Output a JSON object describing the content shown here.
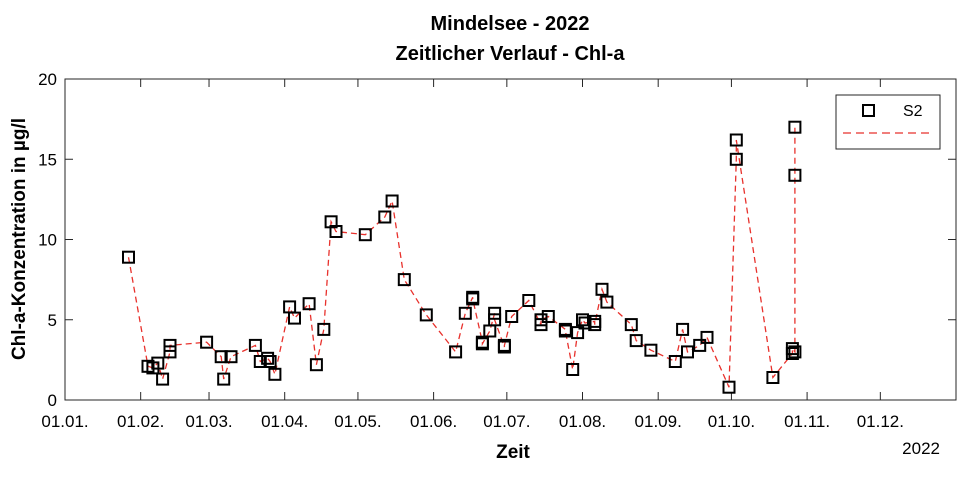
{
  "chart_data": {
    "type": "scatter",
    "title": "Mindelsee - 2022",
    "subtitle": "Zeitlicher Verlauf - Chl-a",
    "xlabel": "Zeit",
    "ylabel": "Chl-a-Konzentration in µg/l",
    "year_label": "2022",
    "xlim": [
      "2022-01-01",
      "2023-01-01"
    ],
    "ylim": [
      0,
      20
    ],
    "yticks": [
      0,
      5,
      10,
      15,
      20
    ],
    "xticks": [
      {
        "date": "2022-01-01",
        "label": "01.01."
      },
      {
        "date": "2022-02-01",
        "label": "01.02."
      },
      {
        "date": "2022-03-01",
        "label": "01.03."
      },
      {
        "date": "2022-04-01",
        "label": "01.04."
      },
      {
        "date": "2022-05-01",
        "label": "01.05."
      },
      {
        "date": "2022-06-01",
        "label": "01.06."
      },
      {
        "date": "2022-07-01",
        "label": "01.07."
      },
      {
        "date": "2022-08-01",
        "label": "01.08."
      },
      {
        "date": "2022-09-01",
        "label": "01.09."
      },
      {
        "date": "2022-10-01",
        "label": "01.10."
      },
      {
        "date": "2022-11-01",
        "label": "01.11."
      },
      {
        "date": "2022-12-01",
        "label": "01.12."
      }
    ],
    "grid": false,
    "legend": "top-right",
    "series": [
      {
        "name": "S2",
        "marker": "square",
        "marker_color": "#000000",
        "line_color": "#e8312c",
        "line_style": "dashed",
        "x": [
          "2022-01-27",
          "2022-02-04",
          "2022-02-06",
          "2022-02-08",
          "2022-02-10",
          "2022-02-13",
          "2022-02-13",
          "2022-02-28",
          "2022-03-06",
          "2022-03-07",
          "2022-03-10",
          "2022-03-20",
          "2022-03-22",
          "2022-03-25",
          "2022-03-26",
          "2022-03-28",
          "2022-04-03",
          "2022-04-05",
          "2022-04-11",
          "2022-04-14",
          "2022-04-17",
          "2022-04-20",
          "2022-04-22",
          "2022-05-04",
          "2022-05-12",
          "2022-05-15",
          "2022-05-20",
          "2022-05-29",
          "2022-06-10",
          "2022-06-14",
          "2022-06-17",
          "2022-06-17",
          "2022-06-21",
          "2022-06-21",
          "2022-06-24",
          "2022-06-26",
          "2022-06-26",
          "2022-06-30",
          "2022-06-30",
          "2022-07-03",
          "2022-07-10",
          "2022-07-15",
          "2022-07-15",
          "2022-07-18",
          "2022-07-25",
          "2022-07-25",
          "2022-07-28",
          "2022-07-30",
          "2022-08-01",
          "2022-08-02",
          "2022-08-06",
          "2022-08-06",
          "2022-08-09",
          "2022-08-11",
          "2022-08-21",
          "2022-08-23",
          "2022-08-29",
          "2022-09-08",
          "2022-09-11",
          "2022-09-13",
          "2022-09-18",
          "2022-09-21",
          "2022-09-30",
          "2022-10-03",
          "2022-10-03",
          "2022-10-18",
          "2022-10-26",
          "2022-10-26",
          "2022-10-27",
          "2022-10-27",
          "2022-10-27"
        ],
        "y": [
          8.9,
          2.1,
          2.0,
          2.3,
          1.3,
          3.0,
          3.4,
          3.6,
          2.7,
          1.3,
          2.7,
          3.4,
          2.4,
          2.6,
          2.4,
          1.6,
          5.8,
          5.1,
          6.0,
          2.2,
          4.4,
          11.1,
          10.5,
          10.3,
          11.4,
          12.4,
          7.5,
          5.3,
          3.0,
          5.4,
          6.4,
          6.3,
          3.6,
          3.5,
          4.3,
          5.4,
          5.0,
          3.3,
          3.4,
          5.2,
          6.2,
          4.7,
          5.0,
          5.2,
          4.4,
          4.3,
          1.9,
          4.2,
          5.0,
          4.8,
          4.9,
          4.7,
          6.9,
          6.1,
          4.7,
          3.7,
          3.1,
          2.4,
          4.4,
          3.0,
          3.4,
          3.9,
          0.8,
          15.0,
          16.2,
          1.4,
          2.9,
          3.2,
          3.0,
          14.0,
          17.0
        ]
      }
    ]
  }
}
